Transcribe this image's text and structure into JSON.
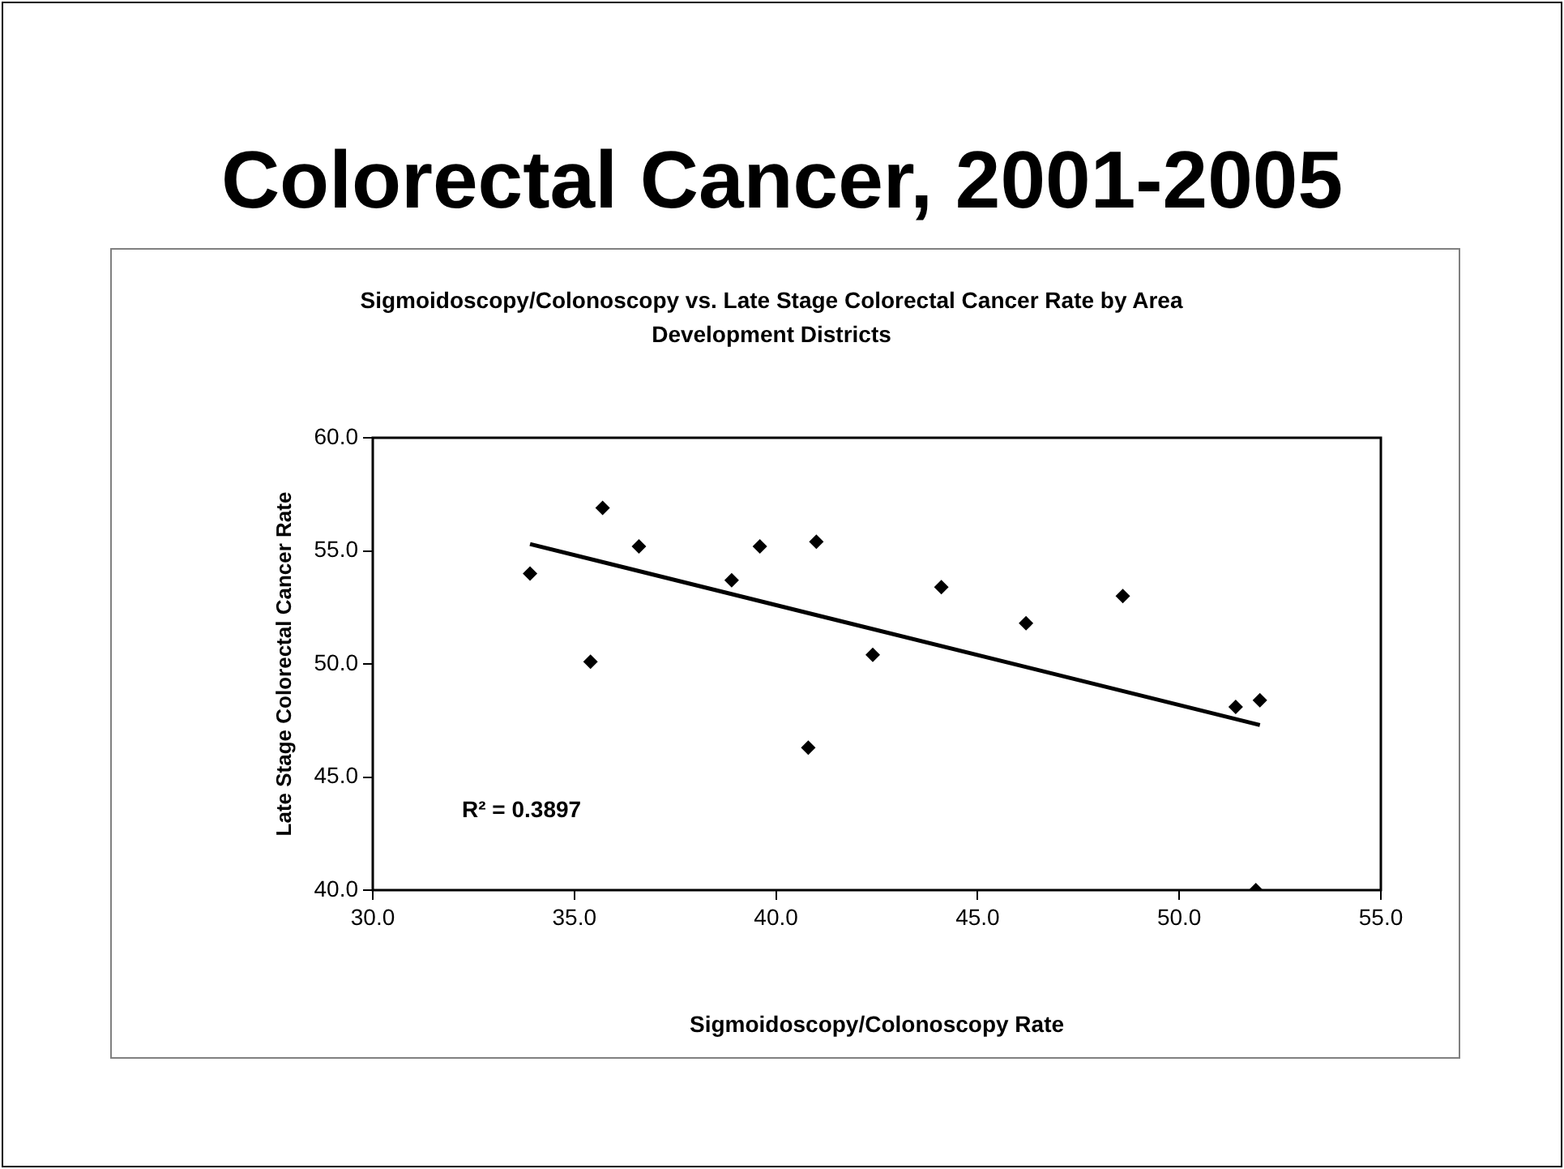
{
  "chart_data": {
    "type": "scatter",
    "title": "Colorectal Cancer, 2001-2005",
    "subtitle": "Sigmoidoscopy/Colonoscopy vs. Late Stage Colorectal Cancer Rate by Area Development Districts",
    "xlabel": "Sigmoidoscopy/Colonoscopy Rate",
    "ylabel": "Late Stage Colorectal Cancer Rate",
    "xlim": [
      30,
      55
    ],
    "ylim": [
      40,
      60
    ],
    "xticks": [
      {
        "value": 30,
        "label": "30.0"
      },
      {
        "value": 35,
        "label": "35.0"
      },
      {
        "value": 40,
        "label": "40.0"
      },
      {
        "value": 45,
        "label": "45.0"
      },
      {
        "value": 50,
        "label": "50.0"
      },
      {
        "value": 55,
        "label": "55.0"
      }
    ],
    "yticks": [
      {
        "value": 40,
        "label": "40.0"
      },
      {
        "value": 45,
        "label": "45.0"
      },
      {
        "value": 50,
        "label": "50.0"
      },
      {
        "value": 55,
        "label": "55.0"
      },
      {
        "value": 60,
        "label": "60.0"
      }
    ],
    "grid": false,
    "legend": false,
    "marker": "diamond",
    "series": [
      {
        "color": "#000000",
        "x": [
          33.9,
          35.4,
          35.7,
          36.6,
          38.9,
          39.6,
          40.8,
          41.0,
          42.4,
          44.1,
          46.2,
          48.6,
          51.4,
          52.0,
          51.9
        ],
        "values": [
          54.0,
          50.1,
          56.9,
          55.2,
          53.7,
          55.2,
          46.3,
          55.4,
          50.4,
          53.4,
          51.8,
          53.0,
          48.1,
          48.4,
          40.0
        ]
      },
      {
        "type": "line",
        "color": "#000000",
        "marker": "none",
        "line_style": "solid",
        "x": [
          33.9,
          52.0
        ],
        "values": [
          55.3,
          47.3
        ]
      }
    ],
    "annotations": [
      "R² = 0.3897"
    ]
  }
}
